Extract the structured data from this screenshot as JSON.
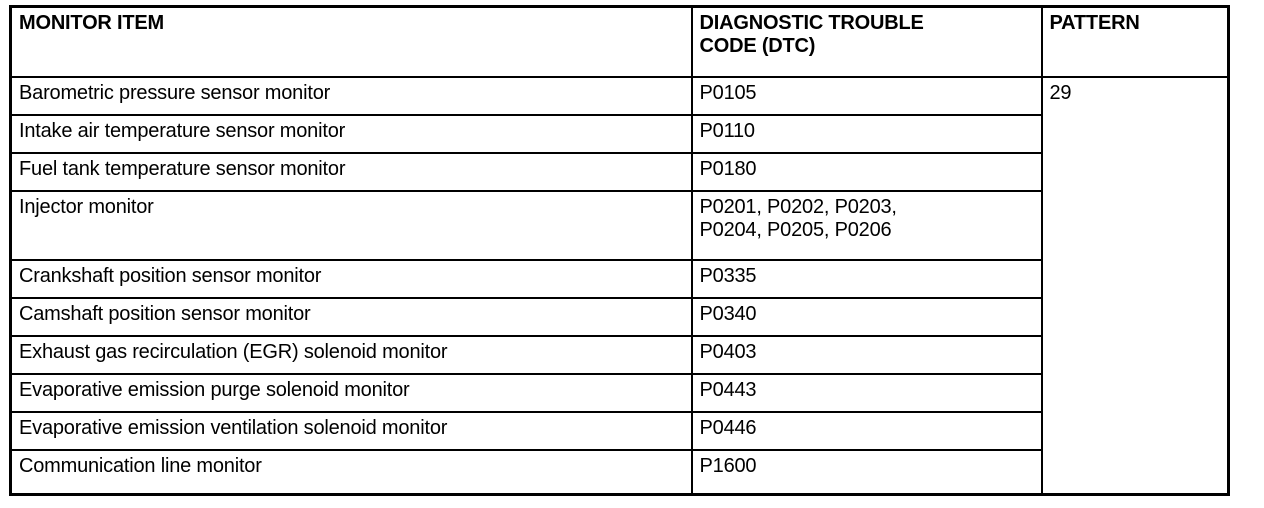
{
  "table": {
    "columns": [
      {
        "label": "MONITOR ITEM"
      },
      {
        "label": "DIAGNOSTIC TROUBLE CODE (DTC)"
      },
      {
        "label": "PATTERN"
      }
    ],
    "pattern_value": "29",
    "rows": [
      {
        "monitor_item": "Barometric pressure sensor monitor",
        "dtc": "P0105"
      },
      {
        "monitor_item": "Intake air temperature sensor monitor",
        "dtc": "P0110"
      },
      {
        "monitor_item": "Fuel tank temperature sensor monitor",
        "dtc": "P0180"
      },
      {
        "monitor_item": "Injector monitor",
        "dtc": "P0201, P0202, P0203, P0204, P0205, P0206"
      },
      {
        "monitor_item": "Crankshaft position sensor monitor",
        "dtc": "P0335"
      },
      {
        "monitor_item": "Camshaft position sensor monitor",
        "dtc": "P0340"
      },
      {
        "monitor_item": "Exhaust gas recirculation (EGR) solenoid monitor",
        "dtc": "P0403"
      },
      {
        "monitor_item": "Evaporative emission purge solenoid monitor",
        "dtc": "P0443"
      },
      {
        "monitor_item": "Evaporative emission ventilation solenoid monitor",
        "dtc": "P0446"
      },
      {
        "monitor_item": "Communication line monitor",
        "dtc": "P1600"
      }
    ]
  }
}
